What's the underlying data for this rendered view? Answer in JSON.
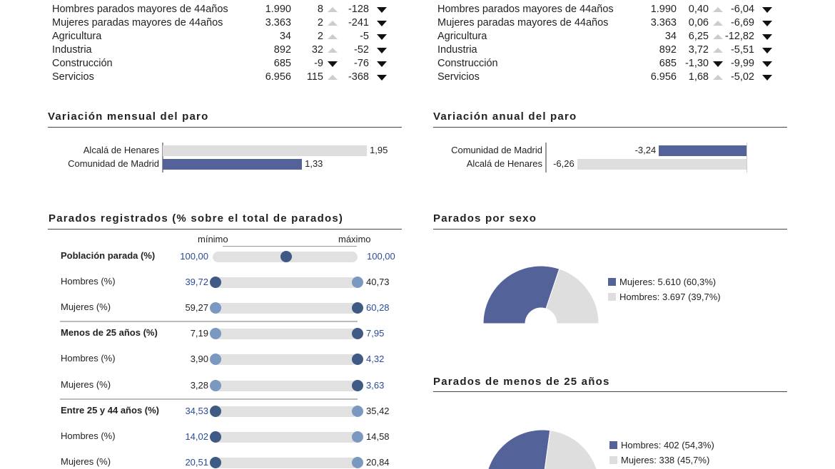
{
  "colors": {
    "accent": "#536399",
    "gray": "#dedede",
    "dot_dark": "#3f5a85",
    "dot_light": "#7a98c0",
    "blue_text": "#2a4a9a"
  },
  "table_absolute": {
    "rows": [
      {
        "label": "Hombres parados mayores de 44años",
        "value": "1.990",
        "monthly": "8",
        "monthly_dir": "up",
        "annual": "-128",
        "annual_dir": "down"
      },
      {
        "label": "Mujeres paradas mayores de 44años",
        "value": "3.363",
        "monthly": "2",
        "monthly_dir": "up",
        "annual": "-241",
        "annual_dir": "down"
      },
      {
        "label": "Agricultura",
        "value": "34",
        "monthly": "2",
        "monthly_dir": "up",
        "annual": "-5",
        "annual_dir": "down"
      },
      {
        "label": "Industria",
        "value": "892",
        "monthly": "32",
        "monthly_dir": "up",
        "annual": "-52",
        "annual_dir": "down"
      },
      {
        "label": "Construcción",
        "value": "685",
        "monthly": "-9",
        "monthly_dir": "down",
        "annual": "-76",
        "annual_dir": "down"
      },
      {
        "label": "Servicios",
        "value": "6.956",
        "monthly": "115",
        "monthly_dir": "up",
        "annual": "-368",
        "annual_dir": "down"
      }
    ]
  },
  "table_percent": {
    "rows": [
      {
        "label": "Hombres parados mayores de 44años",
        "value": "1.990",
        "monthly": "0,40",
        "monthly_dir": "up",
        "annual": "-6,04",
        "annual_dir": "down"
      },
      {
        "label": "Mujeres paradas mayores de 44años",
        "value": "3.363",
        "monthly": "0,06",
        "monthly_dir": "up",
        "annual": "-6,69",
        "annual_dir": "down"
      },
      {
        "label": "Agricultura",
        "value": "34",
        "monthly": "6,25",
        "monthly_dir": "up",
        "annual": "-12,82",
        "annual_dir": "down"
      },
      {
        "label": "Industria",
        "value": "892",
        "monthly": "3,72",
        "monthly_dir": "up",
        "annual": "-5,51",
        "annual_dir": "down"
      },
      {
        "label": "Construcción",
        "value": "685",
        "monthly": "-1,30",
        "monthly_dir": "down",
        "annual": "-9,99",
        "annual_dir": "down"
      },
      {
        "label": "Servicios",
        "value": "6.956",
        "monthly": "1,68",
        "monthly_dir": "up",
        "annual": "-5,02",
        "annual_dir": "down"
      }
    ]
  },
  "chart_data": [
    {
      "type": "bar",
      "title": "Variación mensual del paro",
      "categories": [
        "Alcalá de Henares",
        "Comunidad de Madrid"
      ],
      "values": [
        1.95,
        1.33
      ],
      "labels": [
        "1,95",
        "1,33"
      ],
      "highlight": [
        false,
        true
      ],
      "xlim": [
        0,
        2.1
      ]
    },
    {
      "type": "bar",
      "title": "Variación anual del paro",
      "categories": [
        "Comunidad de Madrid",
        "Alcalá de Henares"
      ],
      "values": [
        -3.24,
        -6.26
      ],
      "labels": [
        "-3,24",
        "-6,26"
      ],
      "highlight": [
        true,
        false
      ],
      "xlim": [
        -7.44,
        0
      ]
    },
    {
      "type": "table",
      "title": "Parados registrados (% sobre el total de parados)",
      "min_label": "mínimo",
      "max_label": "máximo",
      "rows": [
        {
          "label": "Población parada (%)",
          "bold": true,
          "min": "100,00",
          "max": "100,00",
          "highlight": "both",
          "divider_after": false
        },
        {
          "label": "Hombres (%)",
          "bold": false,
          "min": "39,72",
          "max": "40,73",
          "highlight": "min",
          "divider_after": false
        },
        {
          "label": "Mujeres (%)",
          "bold": false,
          "min": "59,27",
          "max": "60,28",
          "highlight": "max",
          "divider_after": true
        },
        {
          "label": "Menos de 25 años (%)",
          "bold": true,
          "min": "7,19",
          "max": "7,95",
          "highlight": "max",
          "divider_after": false
        },
        {
          "label": "Hombres (%)",
          "bold": false,
          "min": "3,90",
          "max": "4,32",
          "highlight": "max",
          "divider_after": false
        },
        {
          "label": "Mujeres (%)",
          "bold": false,
          "min": "3,28",
          "max": "3,63",
          "highlight": "max",
          "divider_after": true
        },
        {
          "label": "Entre 25 y 44 años (%)",
          "bold": true,
          "min": "34,53",
          "max": "35,42",
          "highlight": "min",
          "divider_after": false
        },
        {
          "label": "Hombres (%)",
          "bold": false,
          "min": "14,02",
          "max": "14,58",
          "highlight": "min",
          "divider_after": false
        },
        {
          "label": "Mujeres (%)",
          "bold": false,
          "min": "20,51",
          "max": "20,84",
          "highlight": "min",
          "divider_after": false
        }
      ]
    },
    {
      "type": "pie",
      "title": "Parados por sexo",
      "slices": [
        {
          "label": "Mujeres: 5.610 (60,3%)",
          "value": 5610,
          "pct": 60.3
        },
        {
          "label": "Hombres: 3.697 (39,7%)",
          "value": 3697,
          "pct": 39.7
        }
      ]
    },
    {
      "type": "pie",
      "title": "Parados de menos de 25 años",
      "slices": [
        {
          "label": "Hombres: 402 (54,3%)",
          "value": 402,
          "pct": 54.3
        },
        {
          "label": "Mujeres: 338 (45,7%)",
          "value": 338,
          "pct": 45.7
        }
      ]
    }
  ]
}
